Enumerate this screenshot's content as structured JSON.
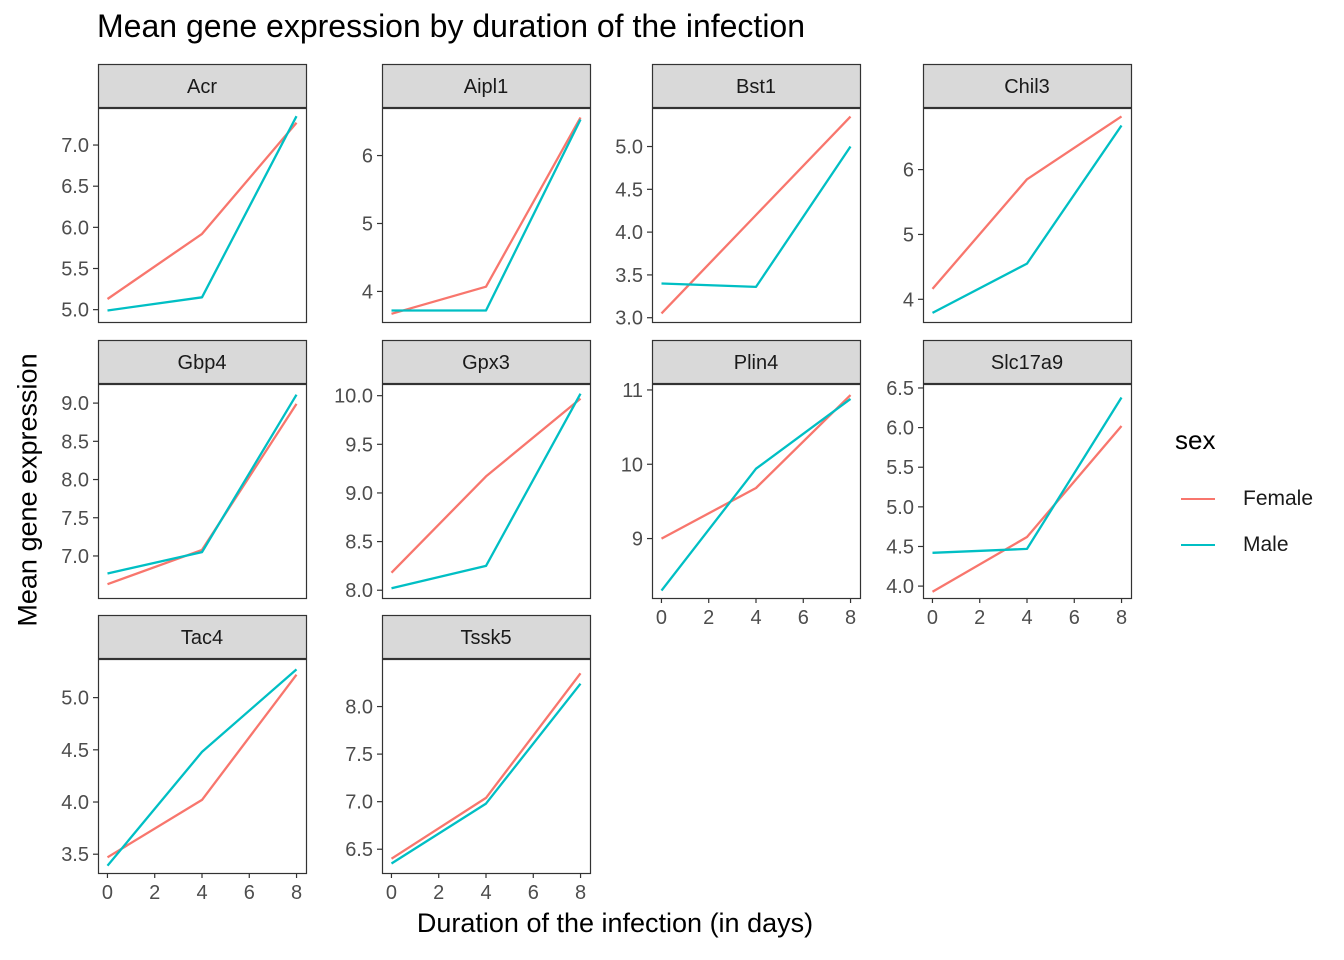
{
  "chart_data": {
    "type": "line",
    "title": "Mean gene expression by duration of the infection",
    "xlabel": "Duration of the infection (in days)",
    "ylabel": "Mean gene expression",
    "legend": {
      "title": "sex",
      "placement": "right",
      "entries": [
        {
          "name": "Female",
          "color": "#F8766D"
        },
        {
          "name": "Male",
          "color": "#00BFC4"
        }
      ]
    },
    "x": [
      0,
      4,
      8
    ],
    "xticks": [
      0,
      2,
      4,
      6,
      8
    ],
    "xlim": [
      -0.4,
      8.4
    ],
    "grid": false,
    "facets": [
      {
        "name": "Acr",
        "ylim": [
          4.85,
          7.45
        ],
        "yticks": [
          "5.0",
          "5.5",
          "6.0",
          "6.5",
          "7.0"
        ],
        "series": [
          {
            "name": "Female",
            "values": [
              5.13,
              5.92,
              7.27
            ]
          },
          {
            "name": "Male",
            "values": [
              4.99,
              5.15,
              7.35
            ]
          }
        ]
      },
      {
        "name": "Aipl1",
        "ylim": [
          3.55,
          6.7
        ],
        "yticks": [
          "4",
          "5",
          "6"
        ],
        "series": [
          {
            "name": "Female",
            "values": [
              3.67,
              4.07,
              6.56
            ]
          },
          {
            "name": "Male",
            "values": [
              3.72,
              3.72,
              6.53
            ]
          }
        ]
      },
      {
        "name": "Bst1",
        "ylim": [
          2.95,
          5.45
        ],
        "yticks": [
          "3.0",
          "3.5",
          "4.0",
          "4.5",
          "5.0"
        ],
        "series": [
          {
            "name": "Female",
            "values": [
              3.05,
              4.2,
              5.35
            ]
          },
          {
            "name": "Male",
            "values": [
              3.4,
              3.36,
              5.0
            ]
          }
        ]
      },
      {
        "name": "Chil3",
        "ylim": [
          3.65,
          6.95
        ],
        "yticks": [
          "4",
          "5",
          "6"
        ],
        "series": [
          {
            "name": "Female",
            "values": [
              4.16,
              5.85,
              6.82
            ]
          },
          {
            "name": "Male",
            "values": [
              3.79,
              4.55,
              6.68
            ]
          }
        ]
      },
      {
        "name": "Gbp4",
        "ylim": [
          6.45,
          9.25
        ],
        "yticks": [
          "7.0",
          "7.5",
          "8.0",
          "8.5",
          "9.0"
        ],
        "series": [
          {
            "name": "Female",
            "values": [
              6.63,
              7.08,
              8.99
            ]
          },
          {
            "name": "Male",
            "values": [
              6.77,
              7.05,
              9.11
            ]
          }
        ]
      },
      {
        "name": "Gpx3",
        "ylim": [
          7.92,
          10.12
        ],
        "yticks": [
          "8.0",
          "8.5",
          "9.0",
          "9.5",
          "10.0"
        ],
        "series": [
          {
            "name": "Female",
            "values": [
              8.18,
              9.17,
              9.97
            ]
          },
          {
            "name": "Male",
            "values": [
              8.02,
              8.25,
              10.02
            ]
          }
        ]
      },
      {
        "name": "Plin4",
        "ylim": [
          8.2,
          11.08
        ],
        "yticks": [
          "9",
          "10",
          "11"
        ],
        "series": [
          {
            "name": "Female",
            "values": [
              9.0,
              9.68,
              10.93
            ]
          },
          {
            "name": "Male",
            "values": [
              8.3,
              9.94,
              10.88
            ]
          }
        ]
      },
      {
        "name": "Slc17a9",
        "ylim": [
          3.85,
          6.55
        ],
        "yticks": [
          "4.0",
          "4.5",
          "5.0",
          "5.5",
          "6.0",
          "6.5"
        ],
        "series": [
          {
            "name": "Female",
            "values": [
              3.93,
              4.62,
              6.02
            ]
          },
          {
            "name": "Male",
            "values": [
              4.42,
              4.47,
              6.38
            ]
          }
        ]
      },
      {
        "name": "Tac4",
        "ylim": [
          3.32,
          5.37
        ],
        "yticks": [
          "3.5",
          "4.0",
          "4.5",
          "5.0"
        ],
        "series": [
          {
            "name": "Female",
            "values": [
              3.47,
              4.02,
              5.22
            ]
          },
          {
            "name": "Male",
            "values": [
              3.39,
              4.48,
              5.27
            ]
          }
        ]
      },
      {
        "name": "Tssk5",
        "ylim": [
          6.25,
          8.5
        ],
        "yticks": [
          "6.5",
          "7.0",
          "7.5",
          "8.0"
        ],
        "series": [
          {
            "name": "Female",
            "values": [
              6.4,
              7.04,
              8.35
            ]
          },
          {
            "name": "Male",
            "values": [
              6.35,
              6.98,
              8.24
            ]
          }
        ]
      }
    ]
  }
}
